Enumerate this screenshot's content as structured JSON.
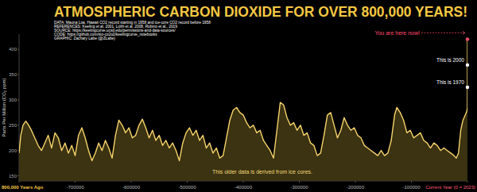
{
  "chart_data": {
    "type": "area",
    "title": "ATMOSPHERIC CARBON DIOXIDE FOR OVER 800,000 YEARS!",
    "subtitle": [
      "DATA: Mauna Loa, Hawaii CO2 record starting in 1958 and ice-core CO2 record before 1958",
      "REFERENCES: Keeling et al. 2001, Lüthi et al. 2008, Rubino et al., 2019",
      "SOURCE: https://keelingcurve.ucsd.edu/permissions-and-data-sources/",
      "CODE: https://github.com/sio-co2o2/keelingcurve_notebooks",
      "GRAPHIC: Zachary Labe (@ZLabe)"
    ],
    "y_label": "Parts Per Million (CO₂ ppm)",
    "annotations": [
      {
        "text": "You are here now!",
        "x": 0,
        "y": 420
      },
      {
        "text": "This is 2000",
        "x": -23,
        "y": 369
      },
      {
        "text": "This is 1970",
        "x": -53,
        "y": 325
      },
      {
        "text": "This older data is derived from ice cores."
      }
    ],
    "x": [
      -800000,
      -797000,
      -793000,
      -788000,
      -783000,
      -778000,
      -772000,
      -766000,
      -760000,
      -754000,
      -748000,
      -742000,
      -736000,
      -730000,
      -724000,
      -718000,
      -712000,
      -706000,
      -700000,
      -694000,
      -688000,
      -682000,
      -676000,
      -670000,
      -664000,
      -658000,
      -652000,
      -646000,
      -640000,
      -634000,
      -628000,
      -622000,
      -616000,
      -610000,
      -604000,
      -598000,
      -592000,
      -586000,
      -580000,
      -574000,
      -568000,
      -562000,
      -556000,
      -550000,
      -544000,
      -538000,
      -532000,
      -526000,
      -520000,
      -514000,
      -508000,
      -502000,
      -496000,
      -490000,
      -484000,
      -478000,
      -472000,
      -466000,
      -460000,
      -454000,
      -448000,
      -442000,
      -436000,
      -430000,
      -424000,
      -418000,
      -412000,
      -406000,
      -400000,
      -394000,
      -388000,
      -382000,
      -376000,
      -370000,
      -364000,
      -358000,
      -352000,
      -346000,
      -340000,
      -334000,
      -328000,
      -322000,
      -316000,
      -310000,
      -304000,
      -298000,
      -292000,
      -286000,
      -280000,
      -274000,
      -268000,
      -262000,
      -256000,
      -250000,
      -244000,
      -238000,
      -232000,
      -226000,
      -220000,
      -214000,
      -208000,
      -202000,
      -196000,
      -190000,
      -184000,
      -178000,
      -172000,
      -166000,
      -160000,
      -154000,
      -148000,
      -142000,
      -136000,
      -130000,
      -126000,
      -120000,
      -114000,
      -108000,
      -102000,
      -96000,
      -90000,
      -84000,
      -78000,
      -72000,
      -66000,
      -60000,
      -54000,
      -48000,
      -42000,
      -36000,
      -30000,
      -24000,
      -20000,
      -16000,
      -12000,
      -8000,
      -4000,
      -1000,
      -173,
      -65,
      -53,
      -23,
      0
    ],
    "values": [
      195,
      230,
      250,
      258,
      250,
      240,
      225,
      210,
      200,
      215,
      230,
      205,
      235,
      225,
      200,
      215,
      195,
      210,
      190,
      230,
      245,
      225,
      200,
      180,
      195,
      215,
      200,
      220,
      205,
      185,
      230,
      260,
      250,
      235,
      245,
      225,
      230,
      250,
      262,
      245,
      225,
      240,
      220,
      230,
      210,
      220,
      205,
      215,
      200,
      180,
      215,
      235,
      245,
      230,
      240,
      220,
      230,
      205,
      215,
      195,
      205,
      185,
      190,
      225,
      260,
      280,
      285,
      275,
      270,
      255,
      245,
      250,
      235,
      240,
      220,
      210,
      200,
      185,
      240,
      295,
      290,
      265,
      250,
      255,
      240,
      250,
      230,
      235,
      215,
      210,
      190,
      195,
      230,
      270,
      275,
      250,
      225,
      240,
      265,
      250,
      240,
      245,
      230,
      225,
      210,
      205,
      200,
      195,
      190,
      200,
      190,
      195,
      220,
      270,
      285,
      275,
      260,
      235,
      240,
      225,
      230,
      235,
      220,
      215,
      205,
      215,
      210,
      200,
      205,
      200,
      195,
      190,
      185,
      195,
      240,
      260,
      270,
      278,
      285,
      315,
      325,
      369,
      420
    ],
    "color": "#f7d36b",
    "xlim": [
      -800000,
      0
    ],
    "xticks": [
      {
        "value": -800000,
        "label": "800,000 Years Ago"
      },
      -700000,
      -600000,
      -500000,
      -400000,
      -300000,
      -200000,
      -100000,
      {
        "value": 0,
        "label": "Current Year (0 = 2023)"
      }
    ],
    "ylim": [
      140,
      430
    ],
    "yticks": [
      150,
      200,
      250,
      300,
      350,
      400
    ],
    "grid": false
  }
}
